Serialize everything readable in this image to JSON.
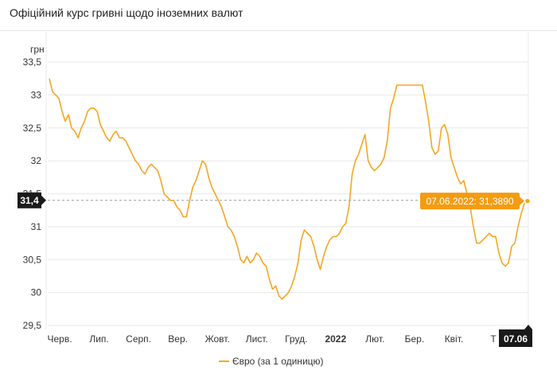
{
  "header": {
    "title": "Офіційний курс гривні щодо іноземних валют"
  },
  "colors": {
    "series": "#f5a623",
    "tooltip_bg": "#f39c12",
    "badge_bg": "#1a1a1a",
    "grid": "#e8e8e8",
    "crosshair": "#9a9a9a"
  },
  "chart_data": {
    "type": "line",
    "ylabel": "грн",
    "ylim": [
      29.5,
      33.5
    ],
    "yticks": [
      "33,5",
      "33",
      "32,5",
      "32",
      "31,5",
      "31",
      "30,5",
      "30",
      "29,5"
    ],
    "x_tick_labels": [
      "Черв.",
      "Лип.",
      "Серп.",
      "Вер.",
      "Жовт.",
      "Лист.",
      "Груд.",
      "2022",
      "Лют.",
      "Бер.",
      "Квіт.",
      "Т"
    ],
    "series": [
      {
        "name": "Євро (за 1 одиницю)",
        "values": [
          33.25,
          33.05,
          33.0,
          32.95,
          32.75,
          32.6,
          32.7,
          32.5,
          32.45,
          32.35,
          32.5,
          32.6,
          32.75,
          32.8,
          32.8,
          32.75,
          32.55,
          32.45,
          32.35,
          32.3,
          32.4,
          32.45,
          32.35,
          32.35,
          32.3,
          32.2,
          32.1,
          32.0,
          31.95,
          31.85,
          31.8,
          31.9,
          31.95,
          31.9,
          31.85,
          31.7,
          31.5,
          31.45,
          31.4,
          31.4,
          31.3,
          31.25,
          31.15,
          31.15,
          31.4,
          31.6,
          31.7,
          31.85,
          32.0,
          31.95,
          31.75,
          31.6,
          31.5,
          31.4,
          31.3,
          31.15,
          31.0,
          30.95,
          30.85,
          30.7,
          30.5,
          30.45,
          30.55,
          30.45,
          30.5,
          30.6,
          30.55,
          30.45,
          30.4,
          30.2,
          30.05,
          30.1,
          29.95,
          29.9,
          29.95,
          30.0,
          30.1,
          30.25,
          30.45,
          30.8,
          30.95,
          30.9,
          30.85,
          30.7,
          30.5,
          30.35,
          30.55,
          30.7,
          30.8,
          30.85,
          30.85,
          30.9,
          31.0,
          31.05,
          31.3,
          31.8,
          32.0,
          32.1,
          32.25,
          32.4,
          32.0,
          31.9,
          31.85,
          31.9,
          31.95,
          32.05,
          32.3,
          32.8,
          32.95,
          33.15,
          33.15,
          33.15,
          33.15,
          33.15,
          33.15,
          33.15,
          33.15,
          33.15,
          32.9,
          32.6,
          32.2,
          32.1,
          32.15,
          32.5,
          32.55,
          32.4,
          32.05,
          31.9,
          31.75,
          31.65,
          31.7,
          31.5,
          31.3,
          31.0,
          30.75,
          30.75,
          30.8,
          30.85,
          30.9,
          30.85,
          30.85,
          30.6,
          30.45,
          30.4,
          30.45,
          30.7,
          30.75,
          31.0,
          31.2,
          31.35,
          31.389
        ]
      }
    ],
    "legend": {
      "position": "bottom-center",
      "label": "Євро (за 1 одиницю)"
    },
    "crosshair": {
      "y_value": 31.4,
      "y_badge_label": "31,4",
      "x_badge_label": "07.06"
    },
    "tooltip": {
      "label": "07.06.2022: 31,3890",
      "value": 31.389
    },
    "grid": {
      "horizontal": true,
      "vertical": false
    }
  }
}
